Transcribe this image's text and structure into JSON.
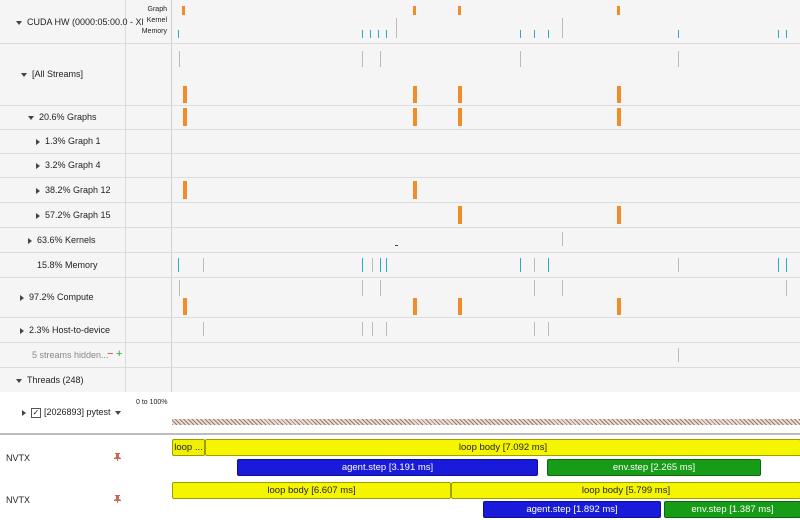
{
  "gpu_row": {
    "title": "CUDA HW (0000:05:00.0 - Xl",
    "minor_labels": [
      "Graph",
      "Kernel",
      "Memory"
    ]
  },
  "rows": [
    {
      "id": "all-streams",
      "label": "[All Streams]"
    },
    {
      "id": "graphs",
      "label": "20.6% Graphs"
    },
    {
      "id": "graph-1",
      "label": "1.3% Graph 1"
    },
    {
      "id": "graph-4",
      "label": "3.2% Graph 4"
    },
    {
      "id": "graph-12",
      "label": "38.2% Graph 12"
    },
    {
      "id": "graph-15",
      "label": "57.2% Graph 15"
    },
    {
      "id": "kernels",
      "label": "63.6% Kernels"
    },
    {
      "id": "memory",
      "label": "15.8% Memory"
    },
    {
      "id": "compute",
      "label": "97.2% Compute"
    },
    {
      "id": "host-to-device",
      "label": "2.3% Host-to-device"
    }
  ],
  "hidden_streams": {
    "label": "5 streams hidden...",
    "remove": "−",
    "add": "+"
  },
  "threads": {
    "label": "Threads (248)"
  },
  "process": {
    "label": "[2026893] pytest",
    "checked": true,
    "scale": "0 to 100%"
  },
  "nvtx": [
    {
      "label": "NVTX",
      "bars": [
        {
          "text": "loop ...",
          "color": "#f0f000"
        },
        {
          "text": "loop body [7.092 ms]",
          "color": "#f5f500"
        },
        {
          "text": "agent.step [3.191 ms]",
          "color": "#1a1adb"
        },
        {
          "text": "env.step [2.265 ms]",
          "color": "#179c17"
        }
      ]
    },
    {
      "label": "NVTX",
      "bars": [
        {
          "text": "loop body [6.607 ms]",
          "color": "#f5f500"
        },
        {
          "text": "loop body [5.799 ms]",
          "color": "#f5f500"
        },
        {
          "text": "agent.step [1.892 ms]",
          "color": "#1a1adb"
        },
        {
          "text": "env.step [1.387 ms]",
          "color": "#179c17"
        }
      ]
    }
  ],
  "colors": {
    "graph_bar": "#f28c28",
    "memory_tick": "#2aa9c9",
    "kernel_tick": "#444444",
    "remove": "#d33",
    "add": "#2a2"
  }
}
